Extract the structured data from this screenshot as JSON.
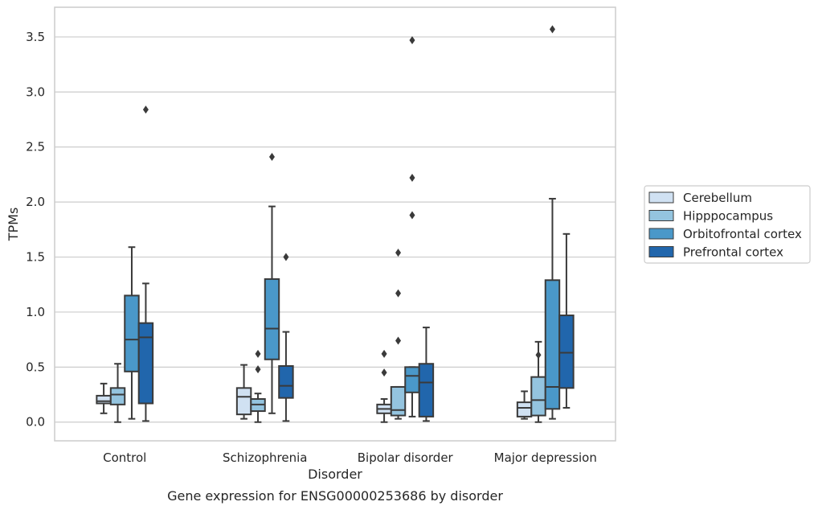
{
  "chart_data": {
    "type": "boxplot",
    "title": "Gene expression for ENSG00000253686 by disorder",
    "xlabel": "Disorder",
    "ylabel": "TPMs",
    "ylim": [
      -0.17,
      3.77
    ],
    "yticks": [
      0.0,
      0.5,
      1.0,
      1.5,
      2.0,
      2.5,
      3.0,
      3.5
    ],
    "ytick_labels": [
      "0.0",
      "0.5",
      "1.0",
      "1.5",
      "2.0",
      "2.5",
      "3.0",
      "3.5"
    ],
    "grid": "horizontal",
    "legend_position": "right",
    "categories": [
      "Control",
      "Schizophrenia",
      "Bipolar disorder",
      "Major depression"
    ],
    "series": [
      {
        "name": "Cerebellum",
        "color": "#d0e1f2",
        "boxes": [
          {
            "whislo": 0.08,
            "q1": 0.17,
            "med": 0.19,
            "q3": 0.24,
            "whishi": 0.35,
            "fliers": []
          },
          {
            "whislo": 0.03,
            "q1": 0.07,
            "med": 0.23,
            "q3": 0.31,
            "whishi": 0.52,
            "fliers": []
          },
          {
            "whislo": 0.0,
            "q1": 0.08,
            "med": 0.12,
            "q3": 0.16,
            "whishi": 0.21,
            "fliers": [
              0.45,
              0.62
            ]
          },
          {
            "whislo": 0.03,
            "q1": 0.05,
            "med": 0.13,
            "q3": 0.18,
            "whishi": 0.28,
            "fliers": []
          }
        ]
      },
      {
        "name": "Hipppocampus",
        "color": "#94c4df",
        "boxes": [
          {
            "whislo": 0.0,
            "q1": 0.16,
            "med": 0.25,
            "q3": 0.31,
            "whishi": 0.53,
            "fliers": []
          },
          {
            "whislo": 0.0,
            "q1": 0.1,
            "med": 0.16,
            "q3": 0.21,
            "whishi": 0.26,
            "fliers": [
              0.48,
              0.62
            ]
          },
          {
            "whislo": 0.03,
            "q1": 0.06,
            "med": 0.11,
            "q3": 0.32,
            "whishi": 0.32,
            "fliers": [
              0.74,
              1.17,
              1.54
            ]
          },
          {
            "whislo": 0.0,
            "q1": 0.06,
            "med": 0.2,
            "q3": 0.41,
            "whishi": 0.73,
            "fliers": [
              0.61
            ]
          }
        ]
      },
      {
        "name": "Orbitofrontal cortex",
        "color": "#4a98c9",
        "boxes": [
          {
            "whislo": 0.03,
            "q1": 0.46,
            "med": 0.75,
            "q3": 1.15,
            "whishi": 1.59,
            "fliers": []
          },
          {
            "whislo": 0.08,
            "q1": 0.57,
            "med": 0.85,
            "q3": 1.3,
            "whishi": 1.96,
            "fliers": [
              2.41
            ]
          },
          {
            "whislo": 0.05,
            "q1": 0.27,
            "med": 0.42,
            "q3": 0.5,
            "whishi": 0.5,
            "fliers": [
              1.88,
              2.22,
              3.47
            ]
          },
          {
            "whislo": 0.03,
            "q1": 0.12,
            "med": 0.32,
            "q3": 1.29,
            "whishi": 2.03,
            "fliers": [
              3.57
            ]
          }
        ]
      },
      {
        "name": "Prefrontal cortex",
        "color": "#2166ac",
        "boxes": [
          {
            "whislo": 0.01,
            "q1": 0.17,
            "med": 0.77,
            "q3": 0.9,
            "whishi": 1.26,
            "fliers": [
              2.84
            ]
          },
          {
            "whislo": 0.01,
            "q1": 0.22,
            "med": 0.33,
            "q3": 0.51,
            "whishi": 0.82,
            "fliers": [
              1.5
            ]
          },
          {
            "whislo": 0.01,
            "q1": 0.05,
            "med": 0.36,
            "q3": 0.53,
            "whishi": 0.86,
            "fliers": []
          },
          {
            "whislo": 0.13,
            "q1": 0.31,
            "med": 0.63,
            "q3": 0.97,
            "whishi": 1.71,
            "fliers": []
          }
        ]
      }
    ]
  }
}
